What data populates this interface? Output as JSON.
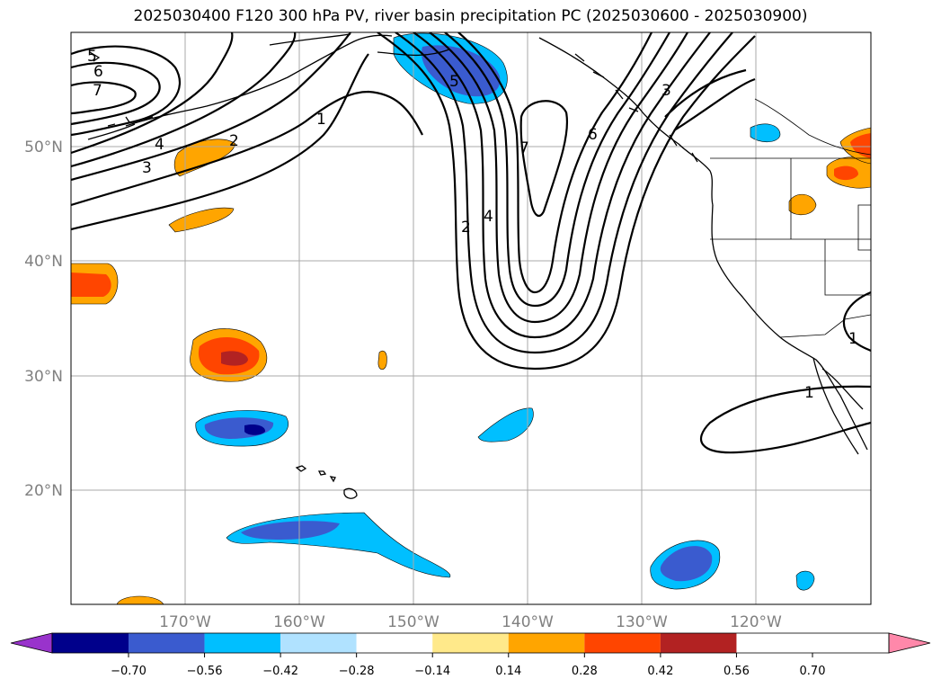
{
  "title": "2025030400 F120 300 hPa PV, river basin precipitation PC (2025030600 - 2025030900)",
  "map": {
    "lon_ticks": [
      "170°W",
      "160°W",
      "150°W",
      "140°W",
      "130°W",
      "120°W"
    ],
    "lat_ticks": [
      "50°N",
      "40°N",
      "30°N",
      "20°N"
    ],
    "extent": {
      "lon_min": -180,
      "lon_max": -110,
      "lat_min": 10,
      "lat_max": 60
    },
    "grid": true
  },
  "contour_labels": {
    "trough": [
      "2",
      "4",
      "7"
    ],
    "west_high": [
      "5",
      "6",
      "7",
      "4",
      "3"
    ],
    "mid": [
      "2",
      "1",
      "5",
      "6",
      "3"
    ],
    "southeast": [
      "1",
      "1"
    ]
  },
  "colorbar": {
    "ticks": [
      "−0.70",
      "−0.56",
      "−0.42",
      "−0.28",
      "−0.14",
      "0.14",
      "0.28",
      "0.42",
      "0.56",
      "0.70"
    ],
    "colors": [
      "#9933cc",
      "#00008b",
      "#3a5bcf",
      "#00bfff",
      "#b0e2ff",
      "#ffffff",
      "#ffe98a",
      "#ffa500",
      "#ff4500",
      "#b22222",
      "#ff88aa"
    ],
    "extend": "both"
  }
}
